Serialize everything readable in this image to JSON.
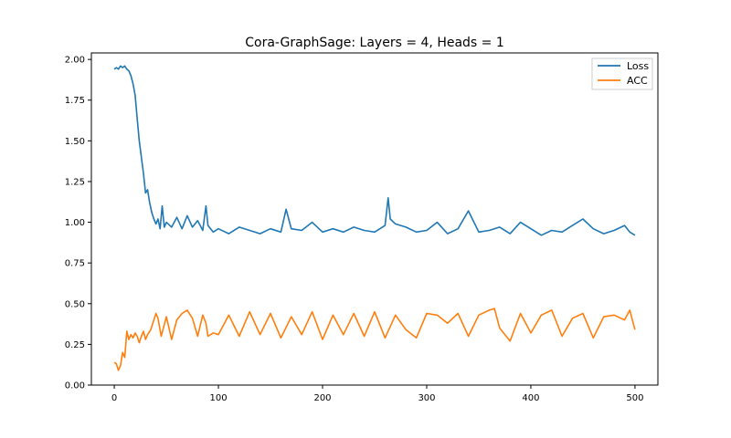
{
  "chart_data": {
    "type": "line",
    "title": "Cora-GraphSage: Layers = 4, Heads = 1",
    "xlabel": "",
    "ylabel": "",
    "xlim": [
      -22,
      522
    ],
    "ylim": [
      -0.0,
      2.04
    ],
    "x_ticks": [
      "0",
      "100",
      "200",
      "300",
      "400",
      "500"
    ],
    "y_ticks": [
      "0.00",
      "0.25",
      "0.50",
      "0.75",
      "1.00",
      "1.25",
      "1.50",
      "1.75",
      "2.00"
    ],
    "grid": false,
    "legend_position": "top-right",
    "series": [
      {
        "name": "Loss",
        "color": "#1f77b4",
        "x": [
          0,
          2,
          4,
          6,
          8,
          10,
          12,
          14,
          16,
          18,
          20,
          22,
          24,
          26,
          28,
          30,
          32,
          34,
          36,
          38,
          40,
          42,
          44,
          46,
          48,
          50,
          55,
          60,
          65,
          70,
          75,
          80,
          85,
          88,
          90,
          95,
          100,
          110,
          120,
          130,
          140,
          150,
          160,
          165,
          170,
          180,
          190,
          200,
          210,
          220,
          230,
          240,
          250,
          260,
          263,
          265,
          270,
          280,
          290,
          300,
          310,
          320,
          330,
          340,
          350,
          360,
          370,
          380,
          390,
          400,
          410,
          420,
          430,
          440,
          450,
          460,
          470,
          480,
          490,
          495,
          500
        ],
        "values": [
          1.94,
          1.95,
          1.94,
          1.96,
          1.95,
          1.96,
          1.94,
          1.93,
          1.9,
          1.85,
          1.78,
          1.64,
          1.5,
          1.4,
          1.3,
          1.18,
          1.2,
          1.12,
          1.06,
          1.02,
          0.99,
          1.02,
          0.96,
          1.1,
          0.97,
          1.0,
          0.97,
          1.03,
          0.96,
          1.04,
          0.97,
          1.01,
          0.95,
          1.1,
          0.98,
          0.94,
          0.96,
          0.93,
          0.97,
          0.95,
          0.93,
          0.96,
          0.94,
          1.08,
          0.96,
          0.95,
          1.0,
          0.94,
          0.96,
          0.94,
          0.97,
          0.95,
          0.94,
          0.98,
          1.15,
          1.02,
          0.99,
          0.97,
          0.94,
          0.95,
          1.0,
          0.93,
          0.96,
          1.07,
          0.94,
          0.95,
          0.97,
          0.93,
          1.0,
          0.96,
          0.92,
          0.95,
          0.94,
          0.98,
          1.02,
          0.96,
          0.93,
          0.95,
          0.98,
          0.94,
          0.92
        ]
      },
      {
        "name": "ACC",
        "color": "#ff7f0e",
        "x": [
          0,
          2,
          4,
          6,
          8,
          10,
          12,
          14,
          16,
          18,
          20,
          22,
          24,
          26,
          28,
          30,
          32,
          35,
          40,
          42,
          45,
          50,
          55,
          60,
          65,
          70,
          75,
          80,
          85,
          88,
          90,
          95,
          100,
          110,
          120,
          130,
          140,
          150,
          160,
          170,
          180,
          190,
          200,
          210,
          220,
          230,
          240,
          250,
          260,
          270,
          280,
          290,
          300,
          310,
          320,
          330,
          340,
          350,
          360,
          365,
          370,
          380,
          390,
          400,
          410,
          420,
          430,
          440,
          450,
          460,
          470,
          480,
          490,
          495,
          500
        ],
        "values": [
          0.14,
          0.13,
          0.09,
          0.12,
          0.2,
          0.17,
          0.33,
          0.28,
          0.31,
          0.29,
          0.32,
          0.3,
          0.26,
          0.3,
          0.33,
          0.28,
          0.31,
          0.34,
          0.44,
          0.41,
          0.3,
          0.42,
          0.28,
          0.4,
          0.44,
          0.46,
          0.41,
          0.3,
          0.43,
          0.38,
          0.3,
          0.32,
          0.31,
          0.43,
          0.3,
          0.45,
          0.31,
          0.44,
          0.29,
          0.42,
          0.31,
          0.45,
          0.28,
          0.43,
          0.31,
          0.44,
          0.3,
          0.45,
          0.29,
          0.43,
          0.34,
          0.29,
          0.44,
          0.43,
          0.38,
          0.44,
          0.3,
          0.43,
          0.46,
          0.47,
          0.35,
          0.27,
          0.44,
          0.32,
          0.43,
          0.46,
          0.3,
          0.41,
          0.44,
          0.29,
          0.42,
          0.43,
          0.4,
          0.46,
          0.34
        ]
      }
    ]
  }
}
